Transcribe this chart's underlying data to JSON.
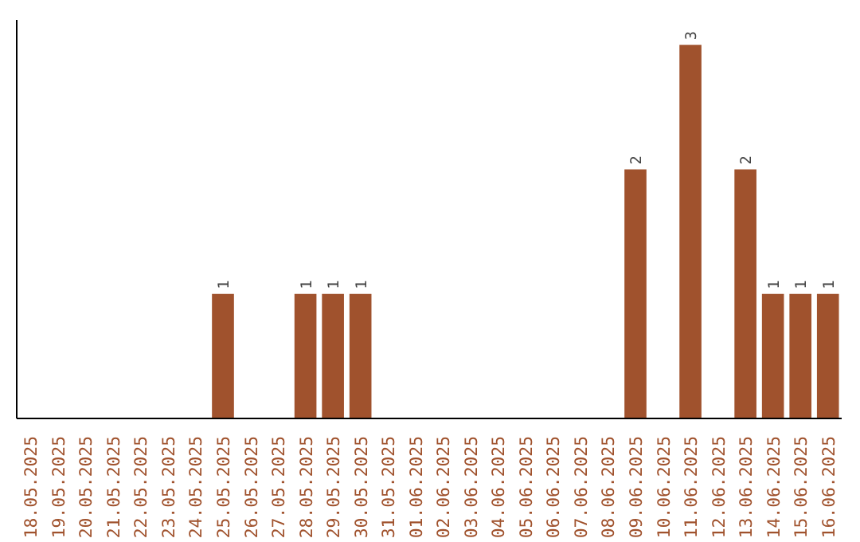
{
  "chart_data": {
    "type": "bar",
    "categories": [
      "18.05.2025",
      "19.05.2025",
      "20.05.2025",
      "21.05.2025",
      "22.05.2025",
      "23.05.2025",
      "24.05.2025",
      "25.05.2025",
      "26.05.2025",
      "27.05.2025",
      "28.05.2025",
      "29.05.2025",
      "30.05.2025",
      "31.05.2025",
      "01.06.2025",
      "02.06.2025",
      "03.06.2025",
      "04.06.2025",
      "05.06.2025",
      "06.06.2025",
      "07.06.2025",
      "08.06.2025",
      "09.06.2025",
      "10.06.2025",
      "11.06.2025",
      "12.06.2025",
      "13.06.2025",
      "14.06.2025",
      "15.06.2025",
      "16.06.2025"
    ],
    "values": [
      0,
      0,
      0,
      0,
      0,
      0,
      0,
      1,
      0,
      0,
      1,
      1,
      1,
      0,
      0,
      0,
      0,
      0,
      0,
      0,
      0,
      0,
      2,
      0,
      3,
      0,
      2,
      1,
      1,
      1
    ],
    "value_labels": [
      null,
      null,
      null,
      null,
      null,
      null,
      null,
      "1",
      null,
      null,
      "1",
      "1",
      "1",
      null,
      null,
      null,
      null,
      null,
      null,
      null,
      null,
      null,
      "2",
      null,
      "3",
      null,
      "2",
      "1",
      "1",
      "1"
    ],
    "color": "#a0522d",
    "ylim": [
      0,
      3.2
    ],
    "grid": false
  }
}
